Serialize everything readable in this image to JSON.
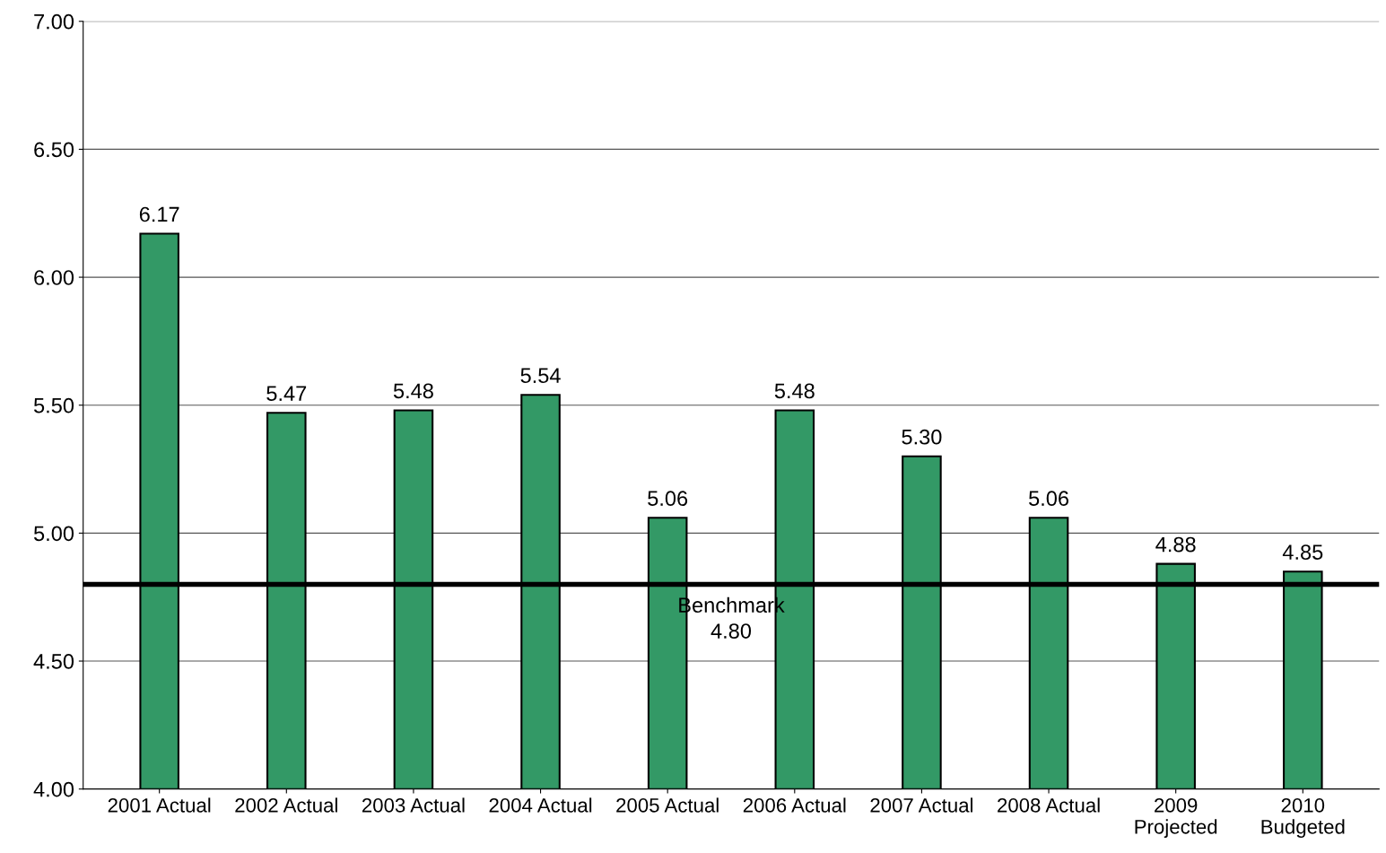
{
  "chart_data": {
    "type": "bar",
    "categories": [
      "2001 Actual",
      "2002 Actual",
      "2003 Actual",
      "2004 Actual",
      "2005 Actual",
      "2006 Actual",
      "2007 Actual",
      "2008 Actual",
      "2009\nProjected",
      "2010\nBudgeted"
    ],
    "values": [
      6.17,
      5.47,
      5.48,
      5.54,
      5.06,
      5.48,
      5.3,
      5.06,
      4.88,
      4.85
    ],
    "color": "#339966",
    "value_labels": [
      "6.17",
      "5.47",
      "5.48",
      "5.54",
      "5.06",
      "5.48",
      "5.30",
      "5.06",
      "4.88",
      "4.85"
    ],
    "ylim": [
      4.0,
      7.0
    ],
    "yticks": [
      {
        "value": 4.0,
        "label": "4.00"
      },
      {
        "value": 4.5,
        "label": "4.50"
      },
      {
        "value": 5.0,
        "label": "5.00"
      },
      {
        "value": 5.5,
        "label": "5.50"
      },
      {
        "value": 6.0,
        "label": "6.00"
      },
      {
        "value": 6.5,
        "label": "6.50"
      },
      {
        "value": 7.0,
        "label": "7.00"
      }
    ],
    "grid": "y",
    "ref_lines": [
      {
        "axis": "y",
        "value": 4.8,
        "label": "Benchmark\n4.80",
        "color": "#000000"
      }
    ]
  }
}
